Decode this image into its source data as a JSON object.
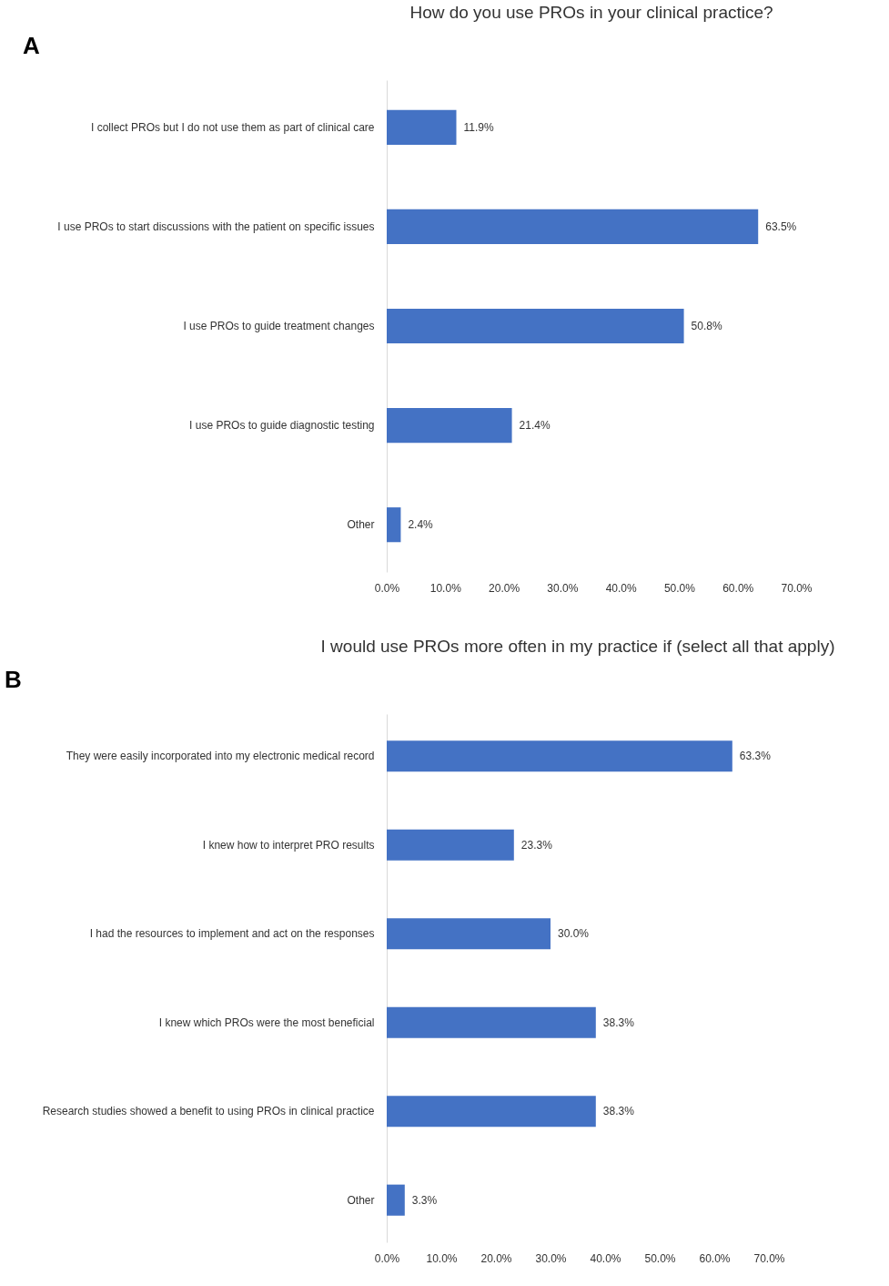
{
  "chart_data": [
    {
      "type": "bar",
      "orientation": "horizontal",
      "title": "How do you use PROs in your clinical practice?",
      "annotations": [
        "A"
      ],
      "categories": [
        "I collect PROs but I do not use them as part of clinical care",
        "I use PROs to start discussions with the patient on specific issues",
        "I use PROs to guide treatment changes",
        "I use PROs to guide diagnostic testing",
        "Other"
      ],
      "values": [
        11.9,
        63.5,
        50.8,
        21.4,
        2.4
      ],
      "value_labels": [
        "11.9%",
        "63.5%",
        "50.8%",
        "21.4%",
        "2.4%"
      ],
      "color": "#4472c4",
      "xlim": [
        0,
        70
      ],
      "xticks": [
        {
          "value": 0,
          "label": "0.0%"
        },
        {
          "value": 10,
          "label": "10.0%"
        },
        {
          "value": 20,
          "label": "20.0%"
        },
        {
          "value": 30,
          "label": "30.0%"
        },
        {
          "value": 40,
          "label": "40.0%"
        },
        {
          "value": 50,
          "label": "50.0%"
        },
        {
          "value": 60,
          "label": "60.0%"
        },
        {
          "value": 70,
          "label": "70.0%"
        }
      ],
      "grid": false
    },
    {
      "type": "bar",
      "orientation": "horizontal",
      "title": "I would use PROs more often in my practice if (select all that apply)",
      "annotations": [
        "B"
      ],
      "categories": [
        "They were easily incorporated into my electronic medical record",
        "I knew how to interpret PRO results",
        "I had the resources to implement and act on the responses",
        "I knew which PROs were the most beneficial",
        "Research studies showed a benefit to using PROs in clinical practice",
        "Other"
      ],
      "values": [
        63.3,
        23.3,
        30.0,
        38.3,
        38.3,
        3.3
      ],
      "value_labels": [
        "63.3%",
        "23.3%",
        "30.0%",
        "38.3%",
        "38.3%",
        "3.3%"
      ],
      "color": "#4472c4",
      "xlim": [
        0,
        70
      ],
      "xticks": [
        {
          "value": 0,
          "label": "0.0%"
        },
        {
          "value": 10,
          "label": "10.0%"
        },
        {
          "value": 20,
          "label": "20.0%"
        },
        {
          "value": 30,
          "label": "30.0%"
        },
        {
          "value": 40,
          "label": "40.0%"
        },
        {
          "value": 50,
          "label": "50.0%"
        },
        {
          "value": 60,
          "label": "60.0%"
        },
        {
          "value": 70,
          "label": "70.0%"
        }
      ],
      "grid": false
    }
  ]
}
